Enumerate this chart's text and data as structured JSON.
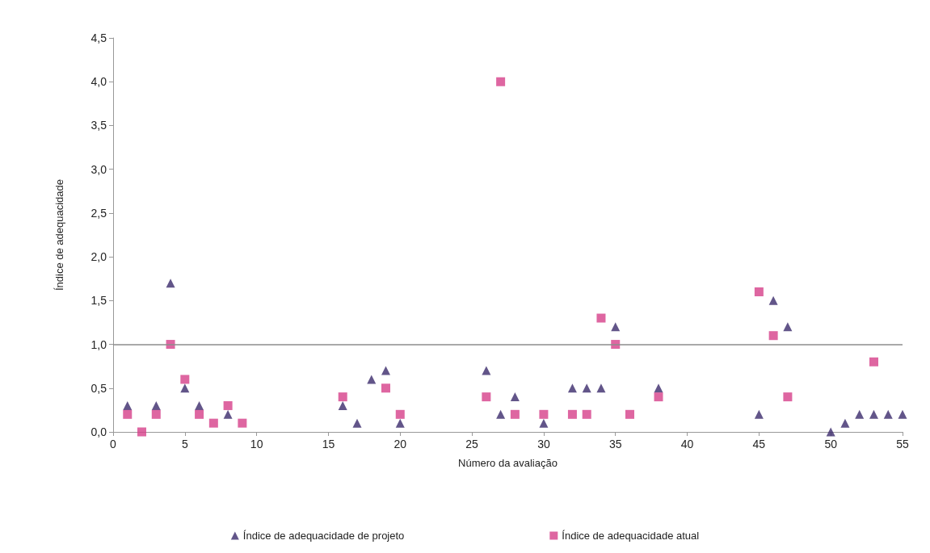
{
  "chart_data": {
    "type": "scatter",
    "xlabel": "Número da avaliação",
    "ylabel": "Índice de adequacidade",
    "xlim": [
      0,
      55
    ],
    "xticks": [
      0,
      5,
      10,
      15,
      20,
      25,
      30,
      35,
      40,
      45,
      50,
      55
    ],
    "ylim": [
      0,
      4.5
    ],
    "yticks": [
      {
        "value": 0,
        "label": "0,0"
      },
      {
        "value": 0.5,
        "label": "0,5"
      },
      {
        "value": 1,
        "label": "1,0"
      },
      {
        "value": 1.5,
        "label": "1,5"
      },
      {
        "value": 2,
        "label": "2,0"
      },
      {
        "value": 2.5,
        "label": "2,5"
      },
      {
        "value": 3,
        "label": "3,0"
      },
      {
        "value": 3.5,
        "label": "3,5"
      },
      {
        "value": 4,
        "label": "4,0"
      },
      {
        "value": 4.5,
        "label": "4,5"
      }
    ],
    "grid": false,
    "legend": "bottom",
    "ref_lines": [
      {
        "axis": "y",
        "value": 1,
        "color": "#8c8c8c"
      }
    ],
    "series": [
      {
        "name": "Índice de adequacidade de projeto",
        "color": "#3b2a6b",
        "marker": "triangle",
        "x": [
          1,
          3,
          4,
          5,
          6,
          8,
          16,
          17,
          18,
          19,
          20,
          26,
          27,
          28,
          30,
          32,
          33,
          34,
          35,
          38,
          45,
          46,
          47,
          50,
          51,
          52,
          53,
          54,
          55
        ],
        "values": [
          0.3,
          0.3,
          1.7,
          0.5,
          0.3,
          0.2,
          0.3,
          0.1,
          0.6,
          0.7,
          0.1,
          0.7,
          0.2,
          0.4,
          0.1,
          0.5,
          0.5,
          0.5,
          1.2,
          0.5,
          0.2,
          1.5,
          1.2,
          0,
          0.1,
          0.2,
          0.2,
          0.2,
          0.2
        ]
      },
      {
        "name": "Índice de adequacidade atual",
        "color": "#d6408a",
        "marker": "square",
        "x": [
          1,
          2,
          3,
          4,
          5,
          6,
          7,
          8,
          9,
          16,
          19,
          20,
          26,
          27,
          28,
          30,
          32,
          33,
          34,
          35,
          36,
          38,
          45,
          46,
          47,
          53
        ],
        "values": [
          0.2,
          0,
          0.2,
          1.0,
          0.6,
          0.2,
          0.1,
          0.3,
          0.1,
          0.4,
          0.5,
          0.2,
          0.4,
          4.0,
          0.2,
          0.2,
          0.2,
          0.2,
          1.3,
          1.0,
          0.2,
          0.4,
          1.6,
          1.1,
          0.4,
          0.8
        ]
      }
    ]
  }
}
